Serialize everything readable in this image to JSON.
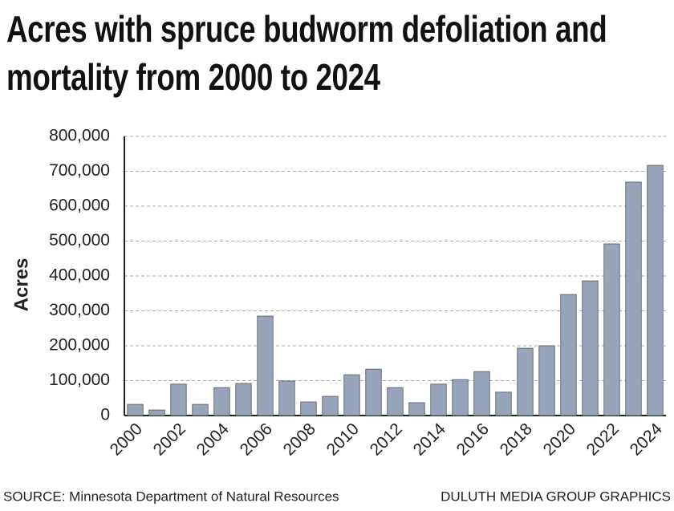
{
  "chart_data": {
    "type": "bar",
    "title": "Acres with spruce budworm defoliation and mortality from 2000 to 2024",
    "y_label": "Acres",
    "source": "SOURCE: Minnesota Department of Natural Resources",
    "credit": "DULUTH MEDIA GROUP GRAPHICS",
    "categories": [
      "2000",
      null,
      "2002",
      null,
      "2004",
      null,
      "2006",
      null,
      "2008",
      null,
      "2010",
      null,
      "2012",
      null,
      "2014",
      null,
      "2016",
      null,
      "2018",
      null,
      "2020",
      null,
      "2022",
      null,
      "2024"
    ],
    "values": [
      32000,
      16000,
      90000,
      32000,
      80000,
      92000,
      285000,
      99000,
      39000,
      55000,
      117000,
      133000,
      80000,
      37000,
      90000,
      103000,
      126000,
      67000,
      193000,
      200000,
      347000,
      386000,
      492000,
      669000,
      717000
    ],
    "color": "#97a4ba",
    "ylim": [
      0,
      800000
    ],
    "yticks": [
      0,
      {
        "value": 100000,
        "label": "100,000"
      },
      {
        "value": 200000,
        "label": "200,000"
      },
      {
        "value": 300000,
        "label": "300,000"
      },
      {
        "value": 400000,
        "label": "400,000"
      },
      {
        "value": 500000,
        "label": "500,000"
      },
      {
        "value": 600000,
        "label": "600,000"
      },
      {
        "value": 700000,
        "label": "700,000"
      },
      {
        "value": 800000,
        "label": "800,000"
      }
    ],
    "grid": true
  }
}
